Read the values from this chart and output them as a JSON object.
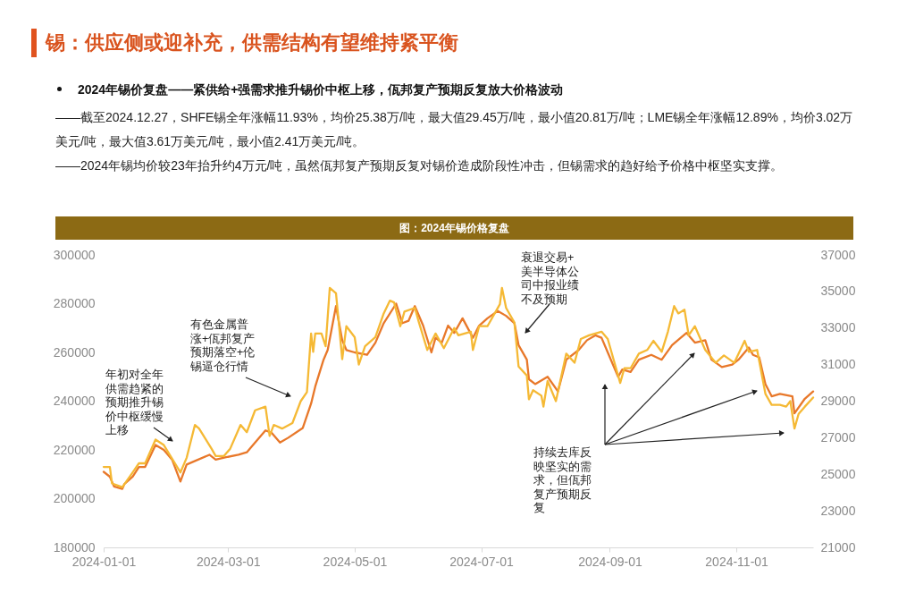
{
  "chart_data": {
    "type": "line",
    "title": "锡：供应侧或迎补充，供需结构有望维持紧平衡",
    "subtitle": "2024年锡价复盘——紧供给+强需求推升锡价中枢上移，佤邦复产预期反复放大价格波动",
    "annotations": [
      "——截至2024.12.27，SHFE锡全年涨幅11.93%，均价25.38万/吨，最大值29.45万/吨，最小值20.81万/吨；LME锡全年涨幅12.89%，均价3.02万美元/吨，最大值3.61万美元/吨，最小值2.41万美元/吨。",
      "——2024年锡均价较23年抬升约4万元/吨，虽然佤邦复产预期反复对锡价造成阶段性冲击，但锡需求的趋好给予价格中枢坚实支撑。",
      "图：2024年锡价格复盘",
      "年初对全年供需趋紧的预期推升锡价中枢缓慢上移",
      "有色金属普涨+佤邦复产预期落空+伦锡逼仓行情",
      "衰退交易+美半导体公司中报业绩不及预期",
      "持续去库反映坚实的需求，但佤邦复产预期反复"
    ],
    "xlim": [
      "2024-01-01",
      "2024-12-08"
    ],
    "xticks": [
      "2024-01-01",
      "2024-03-01",
      "2024-05-01",
      "2024-07-01",
      "2024-09-01",
      "2024-11-01"
    ],
    "ylim": [
      180000,
      300000
    ],
    "yticks": [
      180000,
      200000,
      220000,
      240000,
      260000,
      280000,
      300000
    ],
    "y2lim": [
      21000,
      37000
    ],
    "y2ticks": [
      21000,
      23000,
      25000,
      27000,
      29000,
      31000,
      33000,
      35000,
      37000
    ],
    "series": [
      {
        "color": "#e8782a",
        "x": [
          "2024-01-01",
          "2024-01-04",
          "2024-01-06",
          "2024-01-10",
          "2024-01-11",
          "2024-01-15",
          "2024-01-18",
          "2024-01-21",
          "2024-01-26",
          "2024-01-30",
          "2024-02-03",
          "2024-02-07",
          "2024-02-10",
          "2024-02-21",
          "2024-02-24",
          "2024-02-29",
          "2024-03-06",
          "2024-03-10",
          "2024-03-13",
          "2024-03-19",
          "2024-03-22",
          "2024-03-26",
          "2024-03-30",
          "2024-04-06",
          "2024-04-10",
          "2024-04-12",
          "2024-04-16",
          "2024-04-18",
          "2024-04-22",
          "2024-04-25",
          "2024-04-27",
          "2024-05-01",
          "2024-05-07",
          "2024-05-11",
          "2024-05-15",
          "2024-05-21",
          "2024-05-24",
          "2024-05-27",
          "2024-05-30",
          "2024-06-03",
          "2024-06-07",
          "2024-06-09",
          "2024-06-12",
          "2024-06-15",
          "2024-06-18",
          "2024-06-22",
          "2024-06-27",
          "2024-06-30",
          "2024-07-04",
          "2024-07-09",
          "2024-07-13",
          "2024-07-17",
          "2024-07-19",
          "2024-07-23",
          "2024-07-24",
          "2024-07-27",
          "2024-08-02",
          "2024-08-07",
          "2024-08-11",
          "2024-08-17",
          "2024-08-21",
          "2024-08-25",
          "2024-08-28",
          "2024-08-31",
          "2024-09-05",
          "2024-09-07",
          "2024-09-11",
          "2024-09-15",
          "2024-09-21",
          "2024-09-26",
          "2024-10-01",
          "2024-10-08",
          "2024-10-12",
          "2024-10-17",
          "2024-10-20",
          "2024-10-25",
          "2024-10-30",
          "2024-11-02",
          "2024-11-07",
          "2024-11-09",
          "2024-11-12",
          "2024-11-15",
          "2024-11-18",
          "2024-11-22",
          "2024-11-28",
          "2024-11-29",
          "2024-12-04",
          "2024-12-08"
        ],
        "values": [
          211000,
          209000,
          205000,
          204000,
          206000,
          209000,
          213000,
          213000,
          222000,
          220000,
          216000,
          207000,
          214000,
          218000,
          216000,
          217000,
          218000,
          219000,
          222000,
          228000,
          227000,
          223000,
          225000,
          229000,
          239000,
          246000,
          257000,
          261000,
          279000,
          265000,
          261000,
          260000,
          259000,
          264000,
          272000,
          280000,
          272000,
          273000,
          279000,
          271000,
          260000,
          266000,
          264000,
          271000,
          268000,
          274000,
          266000,
          271000,
          274000,
          277000,
          275000,
          272000,
          263000,
          257000,
          249000,
          247000,
          250000,
          244000,
          257000,
          261000,
          265000,
          267000,
          266000,
          260000,
          250000,
          253000,
          252000,
          257000,
          259000,
          257000,
          263000,
          268000,
          264000,
          265000,
          257000,
          254000,
          255000,
          257000,
          262000,
          259000,
          258000,
          247000,
          242000,
          243000,
          242000,
          235000,
          241000,
          244000
        ]
      },
      {
        "color": "#f5b935",
        "axis": "y2",
        "x": [
          "2024-01-01",
          "2024-01-04",
          "2024-01-05",
          "2024-01-10",
          "2024-01-15",
          "2024-01-18",
          "2024-01-21",
          "2024-01-26",
          "2024-01-30",
          "2024-02-07",
          "2024-02-10",
          "2024-02-14",
          "2024-02-16",
          "2024-02-22",
          "2024-02-24",
          "2024-02-28",
          "2024-03-02",
          "2024-03-07",
          "2024-03-10",
          "2024-03-14",
          "2024-03-19",
          "2024-03-21",
          "2024-03-23",
          "2024-03-27",
          "2024-04-01",
          "2024-04-05",
          "2024-04-08",
          "2024-04-10",
          "2024-04-11",
          "2024-04-12",
          "2024-04-15",
          "2024-04-17",
          "2024-04-19",
          "2024-04-22",
          "2024-04-25",
          "2024-04-27",
          "2024-05-01",
          "2024-05-03",
          "2024-05-06",
          "2024-05-11",
          "2024-05-15",
          "2024-05-18",
          "2024-05-20",
          "2024-05-23",
          "2024-05-25",
          "2024-05-30",
          "2024-06-01",
          "2024-06-05",
          "2024-06-09",
          "2024-06-13",
          "2024-06-18",
          "2024-06-20",
          "2024-06-26",
          "2024-06-27",
          "2024-06-30",
          "2024-07-04",
          "2024-07-10",
          "2024-07-11",
          "2024-07-13",
          "2024-07-17",
          "2024-07-19",
          "2024-07-23",
          "2024-07-24",
          "2024-07-26",
          "2024-07-30",
          "2024-07-31",
          "2024-08-02",
          "2024-08-06",
          "2024-08-11",
          "2024-08-15",
          "2024-08-18",
          "2024-08-22",
          "2024-08-28",
          "2024-08-31",
          "2024-09-06",
          "2024-09-08",
          "2024-09-11",
          "2024-09-15",
          "2024-09-19",
          "2024-09-22",
          "2024-09-26",
          "2024-09-29",
          "2024-10-02",
          "2024-10-04",
          "2024-10-07",
          "2024-10-09",
          "2024-10-12",
          "2024-10-17",
          "2024-10-22",
          "2024-10-26",
          "2024-10-31",
          "2024-11-05",
          "2024-11-07",
          "2024-11-11",
          "2024-11-15",
          "2024-11-18",
          "2024-11-22",
          "2024-11-25",
          "2024-11-27",
          "2024-11-29",
          "2024-12-01",
          "2024-12-04",
          "2024-12-08"
        ],
        "values": [
          25400,
          25400,
          24500,
          24300,
          25100,
          25600,
          25600,
          26900,
          26600,
          25100,
          25900,
          27700,
          27500,
          26400,
          26000,
          26000,
          26400,
          27700,
          27300,
          28500,
          28700,
          27100,
          27700,
          27500,
          27800,
          29000,
          29500,
          32700,
          31700,
          32700,
          32700,
          32000,
          35200,
          34900,
          31300,
          33100,
          32500,
          31000,
          32000,
          32500,
          33800,
          34500,
          34400,
          33100,
          33900,
          34100,
          33300,
          31800,
          32700,
          31900,
          33000,
          32600,
          32800,
          31800,
          33100,
          33100,
          34300,
          35200,
          34100,
          33300,
          30900,
          30400,
          29100,
          29600,
          29300,
          28700,
          30100,
          29000,
          31600,
          31100,
          32400,
          32600,
          32800,
          32400,
          30000,
          30800,
          30800,
          31600,
          31800,
          32300,
          31700,
          32800,
          34200,
          33800,
          34000,
          32600,
          33100,
          31800,
          31100,
          31500,
          31100,
          32300,
          31700,
          31800,
          29400,
          28800,
          28800,
          28700,
          29000,
          27500,
          28300,
          28700,
          29200
        ]
      }
    ]
  }
}
